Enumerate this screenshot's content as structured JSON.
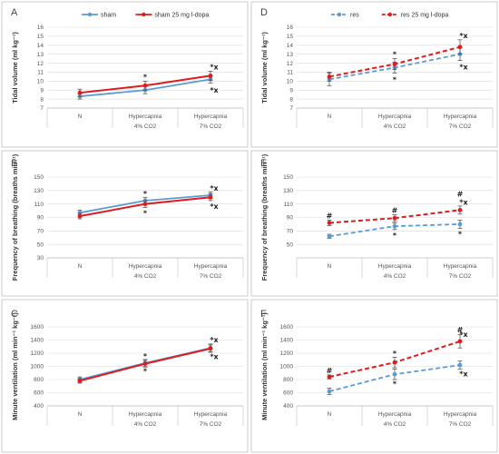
{
  "colors": {
    "blue": "#5b9bd5",
    "red": "#e31a1c",
    "grid": "#d9d9d9",
    "border": "#bfbfbf"
  },
  "chart_data": [
    {
      "letter": "A",
      "type": "line",
      "ylabel": "Tidal volume (ml kg⁻¹)",
      "ylim": [
        7,
        16
      ],
      "yticks": [
        7,
        8,
        9,
        10,
        11,
        12,
        13,
        14,
        15,
        16
      ],
      "categories": [
        [
          "N",
          ""
        ],
        [
          "Hypercapnia",
          "4% CO2"
        ],
        [
          "Hypercapnia",
          "7% CO2"
        ]
      ],
      "legend": "top",
      "series": [
        {
          "name": "sham",
          "color": "#5b9bd5",
          "dashed": false,
          "values": [
            8.3,
            9.0,
            10.2
          ],
          "err": [
            0.3,
            0.4,
            0.4
          ]
        },
        {
          "name": "sham 25 mg l-dopa",
          "color": "#e31a1c",
          "dashed": false,
          "values": [
            8.7,
            9.5,
            10.6
          ],
          "err": [
            0.4,
            0.5,
            0.5
          ]
        }
      ],
      "annotations": [
        {
          "cat": 1,
          "value": 10.5,
          "text": "*"
        },
        {
          "cat": 2,
          "value": 11.6,
          "text": "*x"
        },
        {
          "cat": 2,
          "value": 9.0,
          "text": "*x"
        }
      ]
    },
    {
      "letter": "D",
      "type": "line",
      "ylabel": "Tidal volume (ml kg⁻¹)",
      "ylim": [
        7,
        16
      ],
      "yticks": [
        7,
        8,
        9,
        10,
        11,
        12,
        13,
        14,
        15,
        16
      ],
      "categories": [
        [
          "N",
          ""
        ],
        [
          "Hypercapnia",
          "4% CO2"
        ],
        [
          "Hypercapnia",
          "7% CO2"
        ]
      ],
      "legend": "top",
      "series": [
        {
          "name": "res",
          "color": "#5b9bd5",
          "dashed": true,
          "values": [
            10.2,
            11.5,
            13.0
          ],
          "err": [
            0.7,
            0.6,
            0.7
          ]
        },
        {
          "name": "res 25 mg l-dopa",
          "color": "#e31a1c",
          "dashed": true,
          "values": [
            10.5,
            11.9,
            13.8
          ],
          "err": [
            0.5,
            0.6,
            0.8
          ]
        }
      ],
      "annotations": [
        {
          "cat": 1,
          "value": 13.0,
          "text": "*"
        },
        {
          "cat": 1,
          "value": 10.2,
          "text": "*"
        },
        {
          "cat": 2,
          "value": 15.1,
          "text": "*x"
        },
        {
          "cat": 2,
          "value": 11.6,
          "text": "*x"
        }
      ]
    },
    {
      "letter": "B",
      "type": "line",
      "ylabel": "Frequency of breathing (breaths min⁻¹)",
      "ylim": [
        30,
        150
      ],
      "yticks": [
        30,
        50,
        70,
        90,
        110,
        130,
        150
      ],
      "categories": [
        [
          "N",
          ""
        ],
        [
          "Hypercapnia",
          "4% CO2"
        ],
        [
          "Hypercapnia",
          "7% CO2"
        ]
      ],
      "legend": "none",
      "series": [
        {
          "name": "",
          "color": "#5b9bd5",
          "dashed": false,
          "values": [
            97,
            115,
            123
          ],
          "err": [
            4,
            5,
            5
          ]
        },
        {
          "name": "",
          "color": "#e31a1c",
          "dashed": false,
          "values": [
            92,
            110,
            120
          ],
          "err": [
            4,
            5,
            5
          ]
        }
      ],
      "annotations": [
        {
          "cat": 1,
          "value": 126,
          "text": "*"
        },
        {
          "cat": 1,
          "value": 97,
          "text": "*"
        },
        {
          "cat": 2,
          "value": 134,
          "text": "*x"
        },
        {
          "cat": 2,
          "value": 107,
          "text": "*x"
        }
      ]
    },
    {
      "letter": "E",
      "type": "line",
      "ylabel": "Frequency of breathing (breaths min⁻¹)",
      "ylim": [
        30,
        150
      ],
      "yticks": [
        50,
        70,
        90,
        110,
        130,
        150
      ],
      "categories": [
        [
          "N",
          ""
        ],
        [
          "Hypercapnia",
          "4% CO2"
        ],
        [
          "Hypercapnia",
          "7% CO2"
        ]
      ],
      "legend": "none",
      "series": [
        {
          "name": "",
          "color": "#5b9bd5",
          "dashed": true,
          "values": [
            62,
            77,
            80
          ],
          "err": [
            3,
            5,
            6
          ]
        },
        {
          "name": "",
          "color": "#e31a1c",
          "dashed": true,
          "values": [
            82,
            89,
            101
          ],
          "err": [
            4,
            5,
            6
          ]
        }
      ],
      "annotations": [
        {
          "cat": 0,
          "value": 93,
          "text": "#"
        },
        {
          "cat": 1,
          "value": 101,
          "text": "#"
        },
        {
          "cat": 1,
          "value": 64,
          "text": "*"
        },
        {
          "cat": 2,
          "value": 125,
          "text": "#"
        },
        {
          "cat": 2,
          "value": 113,
          "text": "*x"
        },
        {
          "cat": 2,
          "value": 66,
          "text": "*"
        }
      ]
    },
    {
      "letter": "C",
      "type": "line",
      "ylabel": "Minute ventilation (ml min⁻¹ kg⁻¹)",
      "ylim": [
        400,
        1600
      ],
      "yticks": [
        400,
        600,
        800,
        1000,
        1200,
        1400,
        1600
      ],
      "categories": [
        [
          "N",
          ""
        ],
        [
          "Hypercapnia",
          "4% CO2"
        ],
        [
          "Hypercapnia",
          "7% CO2"
        ]
      ],
      "legend": "none",
      "series": [
        {
          "name": "",
          "color": "#5b9bd5",
          "dashed": false,
          "values": [
            800,
            1050,
            1280
          ],
          "err": [
            40,
            55,
            60
          ]
        },
        {
          "name": "",
          "color": "#e31a1c",
          "dashed": false,
          "values": [
            780,
            1040,
            1270
          ],
          "err": [
            35,
            50,
            55
          ]
        }
      ],
      "annotations": [
        {
          "cat": 1,
          "value": 1160,
          "text": "*"
        },
        {
          "cat": 1,
          "value": 930,
          "text": "*"
        },
        {
          "cat": 2,
          "value": 1410,
          "text": "*x"
        },
        {
          "cat": 2,
          "value": 1150,
          "text": "*x"
        }
      ]
    },
    {
      "letter": "F",
      "type": "line",
      "ylabel": "Minute ventilation (ml min⁻¹ kg⁻¹)",
      "ylim": [
        400,
        1600
      ],
      "yticks": [
        400,
        600,
        800,
        1000,
        1200,
        1400,
        1600
      ],
      "categories": [
        [
          "N",
          ""
        ],
        [
          "Hypercapnia",
          "4% CO2"
        ],
        [
          "Hypercapnia",
          "7% CO2"
        ]
      ],
      "legend": "none",
      "series": [
        {
          "name": "",
          "color": "#5b9bd5",
          "dashed": true,
          "values": [
            620,
            880,
            1020
          ],
          "err": [
            50,
            80,
            60
          ]
        },
        {
          "name": "",
          "color": "#e31a1c",
          "dashed": true,
          "values": [
            840,
            1060,
            1380
          ],
          "err": [
            30,
            80,
            100
          ]
        }
      ],
      "annotations": [
        {
          "cat": 0,
          "value": 940,
          "text": "#"
        },
        {
          "cat": 1,
          "value": 1200,
          "text": "*"
        },
        {
          "cat": 1,
          "value": 740,
          "text": "*"
        },
        {
          "cat": 2,
          "value": 1560,
          "text": "#"
        },
        {
          "cat": 2,
          "value": 1490,
          "text": "*x"
        },
        {
          "cat": 2,
          "value": 890,
          "text": "*x"
        }
      ]
    }
  ]
}
